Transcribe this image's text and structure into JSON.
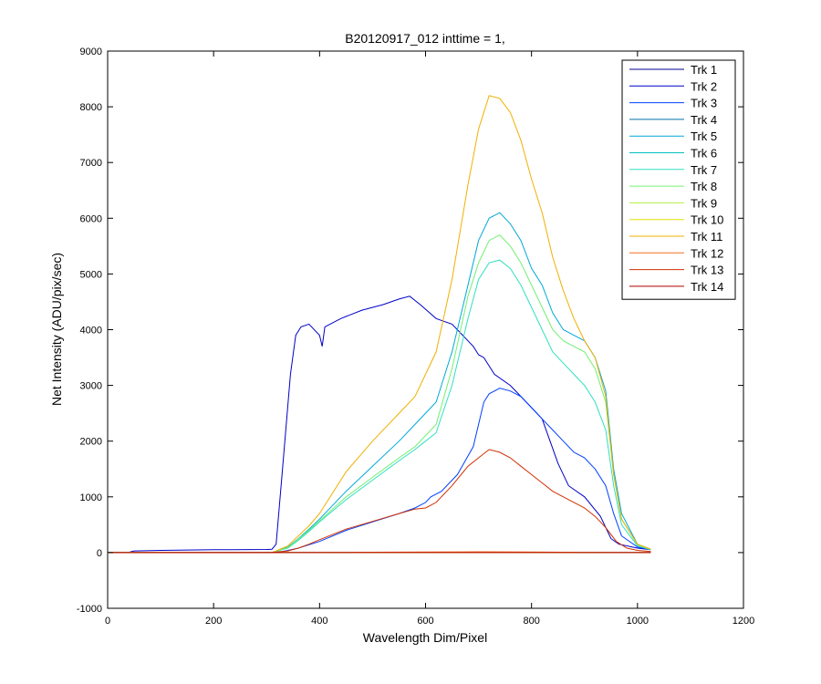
{
  "chart_data": {
    "type": "line",
    "title": "B20120917_012 inttime = 1,",
    "xlabel": "Wavelength Dim/Pixel",
    "ylabel": "Net Intensity (ADU/pix/sec)",
    "xlim": [
      0,
      1200
    ],
    "ylim": [
      -1000,
      9000
    ],
    "x_ticks": [
      0,
      200,
      400,
      600,
      800,
      1000,
      1200
    ],
    "y_ticks": [
      -1000,
      0,
      1000,
      2000,
      3000,
      4000,
      5000,
      6000,
      7000,
      8000,
      9000
    ],
    "grid": false,
    "legend_location": "top-right",
    "series": [
      {
        "name": "Trk 1",
        "color": "#000090",
        "points": [
          [
            0,
            0
          ],
          [
            200,
            0
          ],
          [
            400,
            0
          ],
          [
            600,
            0
          ],
          [
            800,
            0
          ],
          [
            1000,
            0
          ],
          [
            1025,
            0
          ]
        ]
      },
      {
        "name": "Trk 2",
        "color": "#0000c8",
        "points": [
          [
            0,
            5
          ],
          [
            40,
            5
          ],
          [
            50,
            30
          ],
          [
            100,
            40
          ],
          [
            200,
            50
          ],
          [
            300,
            55
          ],
          [
            310,
            60
          ],
          [
            318,
            150
          ],
          [
            330,
            1500
          ],
          [
            345,
            3200
          ],
          [
            355,
            3900
          ],
          [
            365,
            4050
          ],
          [
            380,
            4100
          ],
          [
            400,
            3900
          ],
          [
            405,
            3700
          ],
          [
            410,
            4050
          ],
          [
            440,
            4200
          ],
          [
            480,
            4350
          ],
          [
            520,
            4450
          ],
          [
            550,
            4550
          ],
          [
            570,
            4600
          ],
          [
            590,
            4450
          ],
          [
            620,
            4200
          ],
          [
            650,
            4100
          ],
          [
            670,
            3900
          ],
          [
            690,
            3700
          ],
          [
            700,
            3550
          ],
          [
            710,
            3500
          ],
          [
            730,
            3200
          ],
          [
            760,
            3000
          ],
          [
            790,
            2700
          ],
          [
            820,
            2400
          ],
          [
            835,
            2000
          ],
          [
            850,
            1600
          ],
          [
            870,
            1200
          ],
          [
            900,
            1000
          ],
          [
            930,
            650
          ],
          [
            950,
            250
          ],
          [
            965,
            150
          ],
          [
            1000,
            80
          ],
          [
            1025,
            50
          ]
        ]
      },
      {
        "name": "Trk 3",
        "color": "#0040ff",
        "points": [
          [
            0,
            0
          ],
          [
            300,
            0
          ],
          [
            330,
            20
          ],
          [
            360,
            80
          ],
          [
            400,
            200
          ],
          [
            450,
            400
          ],
          [
            500,
            550
          ],
          [
            550,
            700
          ],
          [
            580,
            800
          ],
          [
            600,
            900
          ],
          [
            610,
            1000
          ],
          [
            630,
            1100
          ],
          [
            660,
            1400
          ],
          [
            690,
            1900
          ],
          [
            700,
            2300
          ],
          [
            710,
            2700
          ],
          [
            720,
            2850
          ],
          [
            740,
            2950
          ],
          [
            760,
            2900
          ],
          [
            780,
            2800
          ],
          [
            800,
            2600
          ],
          [
            820,
            2400
          ],
          [
            840,
            2200
          ],
          [
            860,
            2000
          ],
          [
            880,
            1800
          ],
          [
            900,
            1700
          ],
          [
            920,
            1500
          ],
          [
            940,
            1200
          ],
          [
            955,
            700
          ],
          [
            970,
            300
          ],
          [
            1000,
            100
          ],
          [
            1025,
            50
          ]
        ]
      },
      {
        "name": "Trk 4",
        "color": "#0070a8",
        "points": [
          [
            0,
            0
          ],
          [
            300,
            0
          ],
          [
            1025,
            0
          ]
        ]
      },
      {
        "name": "Trk 5",
        "color": "#00a8d8",
        "points": [
          [
            0,
            0
          ],
          [
            310,
            0
          ],
          [
            340,
            100
          ],
          [
            360,
            250
          ],
          [
            380,
            420
          ],
          [
            400,
            600
          ],
          [
            450,
            1100
          ],
          [
            500,
            1550
          ],
          [
            550,
            2000
          ],
          [
            580,
            2300
          ],
          [
            600,
            2500
          ],
          [
            620,
            2700
          ],
          [
            650,
            3600
          ],
          [
            680,
            4800
          ],
          [
            700,
            5600
          ],
          [
            720,
            6000
          ],
          [
            740,
            6100
          ],
          [
            760,
            5900
          ],
          [
            780,
            5600
          ],
          [
            800,
            5100
          ],
          [
            820,
            4800
          ],
          [
            840,
            4300
          ],
          [
            860,
            4000
          ],
          [
            880,
            3900
          ],
          [
            900,
            3800
          ],
          [
            920,
            3500
          ],
          [
            940,
            2900
          ],
          [
            955,
            1500
          ],
          [
            970,
            700
          ],
          [
            1000,
            150
          ],
          [
            1025,
            60
          ]
        ]
      },
      {
        "name": "Trk 6",
        "color": "#00c0c0",
        "points": [
          [
            0,
            0
          ],
          [
            1025,
            0
          ]
        ]
      },
      {
        "name": "Trk 7",
        "color": "#30e0c0",
        "points": [
          [
            0,
            0
          ],
          [
            310,
            0
          ],
          [
            340,
            80
          ],
          [
            360,
            220
          ],
          [
            380,
            380
          ],
          [
            400,
            550
          ],
          [
            450,
            950
          ],
          [
            500,
            1300
          ],
          [
            550,
            1650
          ],
          [
            580,
            1850
          ],
          [
            600,
            2000
          ],
          [
            620,
            2150
          ],
          [
            650,
            3000
          ],
          [
            680,
            4200
          ],
          [
            700,
            4900
          ],
          [
            720,
            5200
          ],
          [
            740,
            5250
          ],
          [
            760,
            5100
          ],
          [
            780,
            4800
          ],
          [
            800,
            4400
          ],
          [
            820,
            4000
          ],
          [
            840,
            3600
          ],
          [
            860,
            3400
          ],
          [
            880,
            3200
          ],
          [
            900,
            3000
          ],
          [
            920,
            2700
          ],
          [
            940,
            2200
          ],
          [
            955,
            1200
          ],
          [
            970,
            500
          ],
          [
            1000,
            120
          ],
          [
            1025,
            50
          ]
        ]
      },
      {
        "name": "Trk 8",
        "color": "#70f070",
        "points": [
          [
            0,
            0
          ],
          [
            310,
            0
          ],
          [
            340,
            90
          ],
          [
            360,
            240
          ],
          [
            380,
            400
          ],
          [
            400,
            570
          ],
          [
            450,
            1000
          ],
          [
            500,
            1350
          ],
          [
            550,
            1700
          ],
          [
            580,
            1900
          ],
          [
            600,
            2100
          ],
          [
            620,
            2300
          ],
          [
            650,
            3300
          ],
          [
            680,
            4600
          ],
          [
            700,
            5200
          ],
          [
            720,
            5600
          ],
          [
            740,
            5700
          ],
          [
            760,
            5500
          ],
          [
            780,
            5200
          ],
          [
            800,
            4800
          ],
          [
            820,
            4400
          ],
          [
            840,
            4000
          ],
          [
            860,
            3800
          ],
          [
            880,
            3700
          ],
          [
            900,
            3600
          ],
          [
            920,
            3300
          ],
          [
            940,
            2700
          ],
          [
            955,
            1400
          ],
          [
            970,
            600
          ],
          [
            1000,
            140
          ],
          [
            1025,
            55
          ]
        ]
      },
      {
        "name": "Trk 9",
        "color": "#b0f040",
        "points": [
          [
            0,
            0
          ],
          [
            1025,
            0
          ]
        ]
      },
      {
        "name": "Trk 10",
        "color": "#e0e000",
        "points": [
          [
            0,
            0
          ],
          [
            1025,
            0
          ]
        ]
      },
      {
        "name": "Trk 11",
        "color": "#f0b000",
        "points": [
          [
            0,
            0
          ],
          [
            310,
            0
          ],
          [
            340,
            120
          ],
          [
            360,
            300
          ],
          [
            380,
            480
          ],
          [
            400,
            700
          ],
          [
            450,
            1450
          ],
          [
            500,
            2000
          ],
          [
            550,
            2500
          ],
          [
            580,
            2800
          ],
          [
            600,
            3200
          ],
          [
            620,
            3600
          ],
          [
            650,
            4900
          ],
          [
            680,
            6600
          ],
          [
            700,
            7600
          ],
          [
            720,
            8200
          ],
          [
            740,
            8150
          ],
          [
            760,
            7900
          ],
          [
            780,
            7400
          ],
          [
            800,
            6700
          ],
          [
            820,
            6100
          ],
          [
            840,
            5300
          ],
          [
            860,
            4700
          ],
          [
            880,
            4200
          ],
          [
            900,
            3800
          ],
          [
            920,
            3500
          ],
          [
            940,
            2800
          ],
          [
            955,
            1400
          ],
          [
            970,
            600
          ],
          [
            1000,
            150
          ],
          [
            1025,
            60
          ]
        ]
      },
      {
        "name": "Trk 12",
        "color": "#f07020",
        "points": [
          [
            0,
            0
          ],
          [
            300,
            0
          ],
          [
            600,
            10
          ],
          [
            700,
            15
          ],
          [
            800,
            10
          ],
          [
            900,
            5
          ],
          [
            1025,
            0
          ]
        ]
      },
      {
        "name": "Trk 13",
        "color": "#d03000",
        "points": [
          [
            0,
            0
          ],
          [
            310,
            0
          ],
          [
            340,
            30
          ],
          [
            360,
            80
          ],
          [
            380,
            150
          ],
          [
            400,
            230
          ],
          [
            450,
            420
          ],
          [
            500,
            560
          ],
          [
            550,
            700
          ],
          [
            580,
            780
          ],
          [
            600,
            800
          ],
          [
            620,
            900
          ],
          [
            650,
            1200
          ],
          [
            680,
            1550
          ],
          [
            700,
            1700
          ],
          [
            720,
            1850
          ],
          [
            740,
            1800
          ],
          [
            760,
            1700
          ],
          [
            780,
            1550
          ],
          [
            800,
            1400
          ],
          [
            820,
            1250
          ],
          [
            840,
            1100
          ],
          [
            860,
            1000
          ],
          [
            880,
            900
          ],
          [
            900,
            800
          ],
          [
            920,
            650
          ],
          [
            940,
            450
          ],
          [
            960,
            200
          ],
          [
            980,
            80
          ],
          [
            1000,
            40
          ],
          [
            1025,
            20
          ]
        ]
      },
      {
        "name": "Trk 14",
        "color": "#b00000",
        "points": [
          [
            0,
            0
          ],
          [
            1025,
            0
          ]
        ]
      }
    ]
  }
}
